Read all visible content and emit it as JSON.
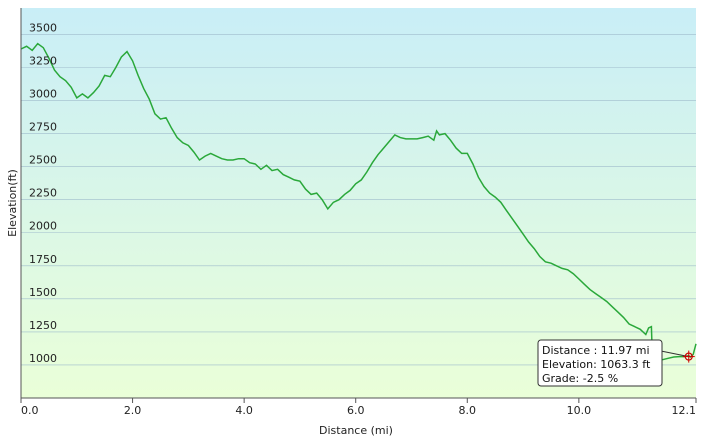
{
  "chart_data": {
    "type": "area",
    "title": "",
    "xlabel": "Distance  (mi)",
    "ylabel": "Elevation(ft)",
    "xlim": [
      0,
      12.1
    ],
    "ylim": [
      750,
      3700
    ],
    "x_ticks": [
      {
        "value": 0,
        "label": "0.0"
      },
      {
        "value": 2,
        "label": "2.0"
      },
      {
        "value": 4,
        "label": "4.0"
      },
      {
        "value": 6,
        "label": "6.0"
      },
      {
        "value": 8,
        "label": "8.0"
      },
      {
        "value": 10,
        "label": "10.0"
      },
      {
        "value": 12.1,
        "label": "12.1"
      }
    ],
    "y_ticks": [
      {
        "value": 1000,
        "label": "1000"
      },
      {
        "value": 1250,
        "label": "1250"
      },
      {
        "value": 1500,
        "label": "1500"
      },
      {
        "value": 1750,
        "label": "1750"
      },
      {
        "value": 2000,
        "label": "2000"
      },
      {
        "value": 2250,
        "label": "2250"
      },
      {
        "value": 2500,
        "label": "2500"
      },
      {
        "value": 2750,
        "label": "2750"
      },
      {
        "value": 3000,
        "label": "3000"
      },
      {
        "value": 3250,
        "label": "3250"
      },
      {
        "value": 3500,
        "label": "3500"
      }
    ],
    "grid": true,
    "colors": {
      "line": "#2aa83a",
      "fill_top": "#c9eef7",
      "fill_bottom": "#eaffd8",
      "marker": "#cc0000"
    },
    "series": [
      {
        "x": [
          0.0,
          0.1,
          0.2,
          0.3,
          0.4,
          0.5,
          0.6,
          0.7,
          0.8,
          0.9,
          1.0,
          1.1,
          1.2,
          1.3,
          1.4,
          1.5,
          1.6,
          1.7,
          1.8,
          1.9,
          2.0,
          2.1,
          2.2,
          2.3,
          2.4,
          2.5,
          2.6,
          2.7,
          2.8,
          2.9,
          3.0,
          3.1,
          3.2,
          3.3,
          3.4,
          3.5,
          3.6,
          3.7,
          3.8,
          3.9,
          4.0,
          4.1,
          4.2,
          4.3,
          4.4,
          4.5,
          4.6,
          4.7,
          4.8,
          4.9,
          5.0,
          5.1,
          5.2,
          5.3,
          5.4,
          5.5,
          5.6,
          5.7,
          5.8,
          5.9,
          6.0,
          6.1,
          6.2,
          6.3,
          6.4,
          6.5,
          6.6,
          6.7,
          6.8,
          6.9,
          7.0,
          7.1,
          7.2,
          7.3,
          7.4,
          7.45,
          7.5,
          7.6,
          7.7,
          7.8,
          7.9,
          8.0,
          8.1,
          8.2,
          8.3,
          8.4,
          8.5,
          8.6,
          8.7,
          8.8,
          8.9,
          9.0,
          9.1,
          9.2,
          9.3,
          9.4,
          9.5,
          9.6,
          9.7,
          9.8,
          9.9,
          10.0,
          10.1,
          10.2,
          10.3,
          10.4,
          10.5,
          10.6,
          10.7,
          10.8,
          10.9,
          11.0,
          11.1,
          11.2,
          11.25,
          11.3,
          11.32,
          11.4,
          11.5,
          11.6,
          11.7,
          11.8,
          11.9,
          11.97,
          12.0,
          12.05,
          12.1
        ],
        "y": [
          3390,
          3410,
          3380,
          3430,
          3400,
          3320,
          3230,
          3180,
          3150,
          3100,
          3020,
          3050,
          3020,
          3060,
          3110,
          3190,
          3180,
          3250,
          3330,
          3370,
          3300,
          3190,
          3090,
          3010,
          2900,
          2860,
          2870,
          2790,
          2720,
          2680,
          2660,
          2610,
          2550,
          2580,
          2600,
          2580,
          2560,
          2550,
          2550,
          2560,
          2560,
          2530,
          2520,
          2480,
          2510,
          2470,
          2480,
          2440,
          2420,
          2400,
          2390,
          2330,
          2290,
          2300,
          2250,
          2180,
          2230,
          2250,
          2290,
          2320,
          2370,
          2400,
          2460,
          2530,
          2590,
          2640,
          2690,
          2740,
          2720,
          2710,
          2710,
          2710,
          2720,
          2730,
          2700,
          2770,
          2740,
          2750,
          2700,
          2640,
          2600,
          2600,
          2520,
          2420,
          2350,
          2300,
          2270,
          2230,
          2170,
          2110,
          2050,
          1990,
          1930,
          1880,
          1820,
          1780,
          1770,
          1750,
          1730,
          1720,
          1690,
          1650,
          1610,
          1570,
          1540,
          1510,
          1480,
          1440,
          1400,
          1360,
          1310,
          1290,
          1270,
          1230,
          1280,
          1290,
          1030,
          1030,
          1040,
          1050,
          1060,
          1063,
          1063,
          1070,
          1060,
          1080,
          1160
        ]
      }
    ],
    "annotation": {
      "x": 11.97,
      "y": 1063.3,
      "lines": [
        "Distance : 11.97 mi",
        "Elevation: 1063.3 ft",
        "Grade: -2.5 %"
      ]
    }
  }
}
